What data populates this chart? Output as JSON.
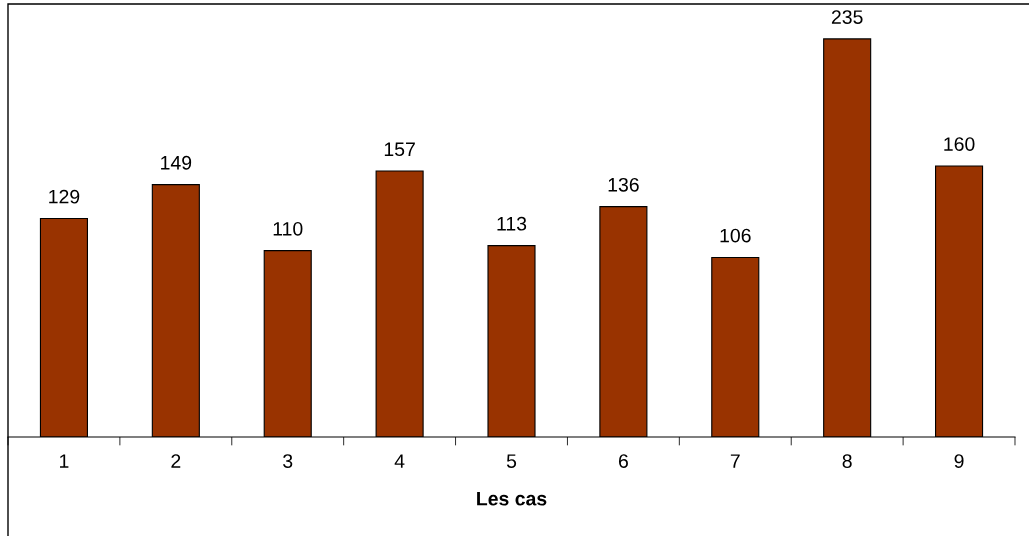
{
  "chart_data": {
    "type": "bar",
    "xlabel": "Les cas",
    "categories": [
      "1",
      "2",
      "3",
      "4",
      "5",
      "6",
      "7",
      "8",
      "9"
    ],
    "values": [
      129,
      149,
      110,
      157,
      113,
      136,
      106,
      235,
      160
    ],
    "color": "#993300",
    "data_labels": true,
    "grid": false,
    "legend": false,
    "tick_labels": "x"
  }
}
